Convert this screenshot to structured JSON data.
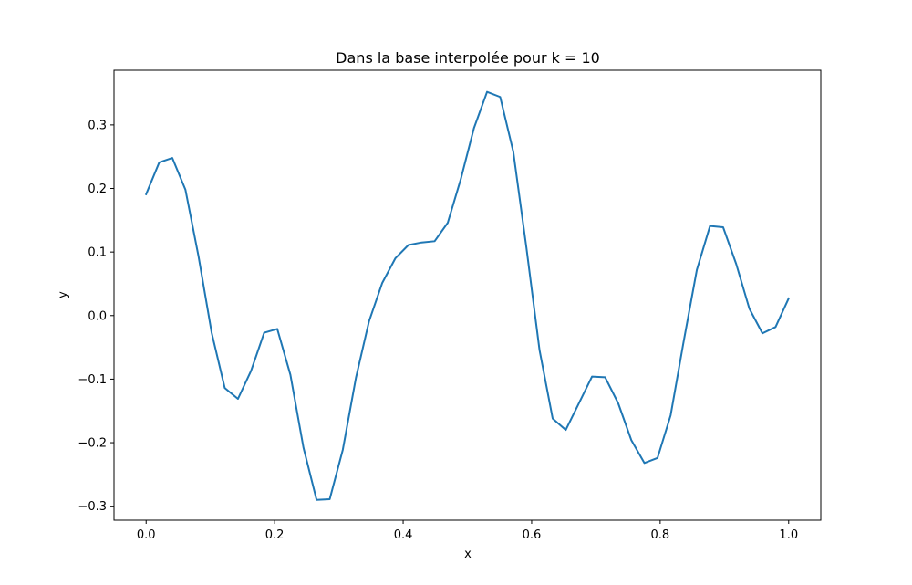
{
  "chart_data": {
    "type": "line",
    "title": "Dans la base interpolée pour k = 10",
    "xlabel": "x",
    "ylabel": "y",
    "xlim": [
      -0.05,
      1.05
    ],
    "ylim": [
      -0.322,
      0.386
    ],
    "grid": false,
    "x_ticks": [
      0.0,
      0.2,
      0.4,
      0.6,
      0.8,
      1.0
    ],
    "x_tick_labels": [
      "0.0",
      "0.2",
      "0.4",
      "0.6",
      "0.8",
      "1.0"
    ],
    "y_ticks": [
      -0.3,
      -0.2,
      -0.1,
      0.0,
      0.1,
      0.2,
      0.3
    ],
    "y_tick_labels": [
      "−0.3",
      "−0.2",
      "−0.1",
      "0.0",
      "0.1",
      "0.2",
      "0.3"
    ],
    "series": [
      {
        "color": "#1f77b4",
        "x": [
          0.0,
          0.0204,
          0.0408,
          0.0612,
          0.0816,
          0.102,
          0.1224,
          0.1429,
          0.1633,
          0.1837,
          0.2041,
          0.2245,
          0.2449,
          0.2653,
          0.2857,
          0.3061,
          0.3265,
          0.3469,
          0.3673,
          0.3878,
          0.4082,
          0.4286,
          0.449,
          0.4694,
          0.4898,
          0.5102,
          0.5306,
          0.551,
          0.5714,
          0.5918,
          0.6122,
          0.6327,
          0.6531,
          0.6735,
          0.6939,
          0.7143,
          0.7347,
          0.7551,
          0.7755,
          0.7959,
          0.8163,
          0.8367,
          0.8571,
          0.8776,
          0.898,
          0.9184,
          0.9388,
          0.9592,
          0.9796,
          1.0
        ],
        "y": [
          0.191,
          0.241,
          0.248,
          0.198,
          0.093,
          -0.027,
          -0.114,
          -0.131,
          -0.087,
          -0.027,
          -0.021,
          -0.093,
          -0.208,
          -0.29,
          -0.289,
          -0.211,
          -0.098,
          -0.009,
          0.051,
          0.09,
          0.111,
          0.115,
          0.117,
          0.146,
          0.215,
          0.295,
          0.352,
          0.344,
          0.258,
          0.107,
          -0.054,
          -0.162,
          -0.18,
          -0.138,
          -0.096,
          -0.097,
          -0.138,
          -0.196,
          -0.232,
          -0.224,
          -0.157,
          -0.04,
          0.072,
          0.141,
          0.139,
          0.081,
          0.011,
          -0.028,
          -0.018,
          0.027
        ]
      }
    ]
  }
}
